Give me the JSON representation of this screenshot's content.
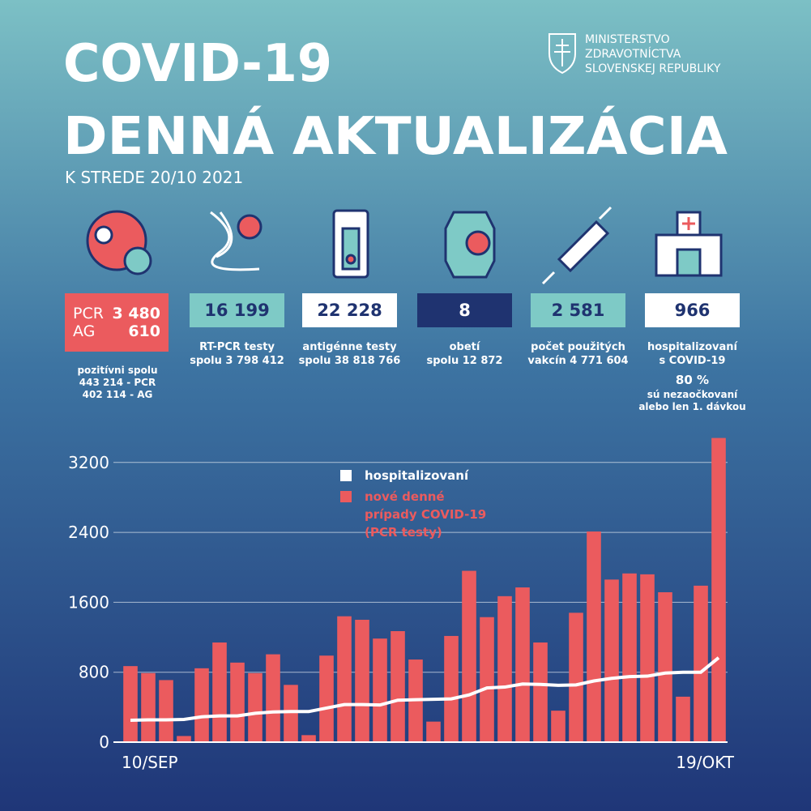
{
  "header": {
    "title": "COVID-19",
    "subtitle": "DENNÁ AKTUALIZÁCIA",
    "date": "K STREDE 20/10 2021"
  },
  "ministry": [
    "MINISTERSTVO",
    "ZDRAVOTNÍCTVA",
    "SLOVENSKEJ REPUBLIKY"
  ],
  "positive": {
    "pcr_label": "PCR",
    "pcr": "3 480",
    "ag_label": "AG",
    "ag": "610",
    "note": "pozitívni spolu\n443 214 - PCR\n402 114 - AG"
  },
  "stats": [
    {
      "value": "16 199",
      "label": "RT-PCR testy\nspolu  3 798 412"
    },
    {
      "value": "22 228",
      "label": "antigénne testy\nspolu  38 818 766"
    },
    {
      "value": "8",
      "label": "obetí\nspolu 12 872"
    },
    {
      "value": "2 581",
      "label": "počet použitých\nvakcín  4 771 604"
    },
    {
      "value": "966",
      "label": "hospitalizovaní\ns COVID-19",
      "extra_value": "80 %",
      "extra_label": "sú nezaočkovaní\nalebo len 1. dávkou"
    }
  ],
  "chart_data": {
    "type": "bar",
    "categories": [
      "10/SEP",
      null,
      null,
      null,
      null,
      null,
      null,
      null,
      null,
      null,
      null,
      null,
      null,
      null,
      null,
      null,
      null,
      null,
      null,
      null,
      null,
      null,
      null,
      null,
      null,
      null,
      null,
      null,
      null,
      null,
      null,
      null,
      null,
      "19/OKT"
    ],
    "series": [
      {
        "name": "nové denné\nprípady COVID-19\n(PCR testy)",
        "color": "#eb5b5e",
        "type": "bar",
        "values": [
          870,
          790,
          710,
          70,
          845,
          1140,
          910,
          790,
          1005,
          655,
          80,
          990,
          1440,
          1400,
          1185,
          1270,
          945,
          235,
          1215,
          1960,
          1430,
          1670,
          1770,
          1140,
          360,
          1480,
          2410,
          1860,
          1930,
          1920,
          1715,
          520,
          1790,
          3480
        ]
      },
      {
        "name": "hospitalizovaní",
        "color": "#ffffff",
        "type": "line",
        "values": [
          250,
          255,
          255,
          260,
          290,
          300,
          300,
          330,
          345,
          350,
          350,
          390,
          430,
          430,
          425,
          480,
          485,
          490,
          495,
          540,
          620,
          630,
          665,
          660,
          650,
          655,
          700,
          730,
          750,
          755,
          790,
          800,
          800,
          966
        ]
      }
    ],
    "ylim": [
      0,
      3300
    ],
    "yticks": [
      0,
      800,
      1600,
      2400,
      3200
    ],
    "grid": true
  }
}
